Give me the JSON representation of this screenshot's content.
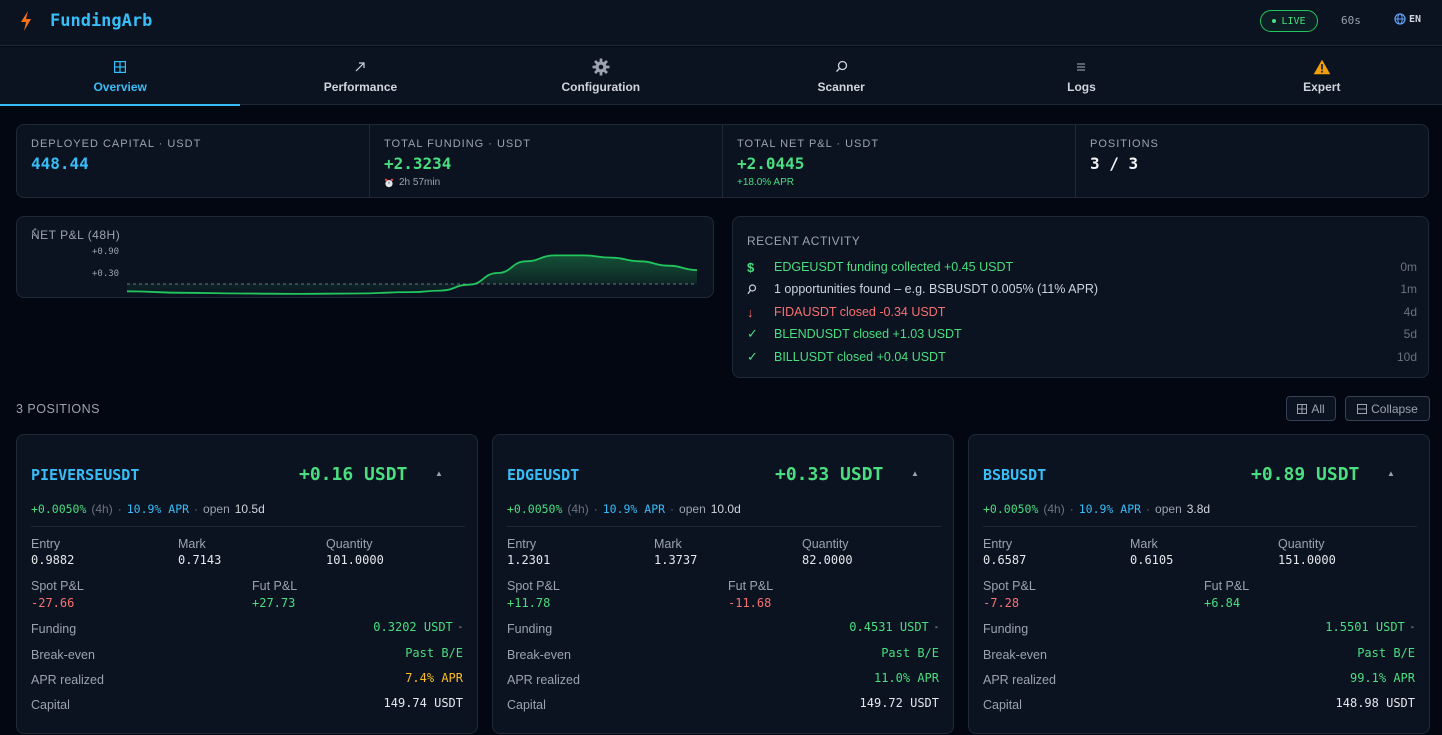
{
  "header": {
    "brand": "FundingArb",
    "live_label": "LIVE",
    "refresh_label": "60s",
    "lang_label": "EN"
  },
  "tabs": [
    {
      "label": "Overview",
      "icon": "grid-icon",
      "active": true
    },
    {
      "label": "Performance",
      "icon": "trend-arrow-icon"
    },
    {
      "label": "Configuration",
      "icon": "gear-icon"
    },
    {
      "label": "Scanner",
      "icon": "search-icon"
    },
    {
      "label": "Logs",
      "icon": "list-icon"
    },
    {
      "label": "Expert",
      "icon": "warning-icon"
    }
  ],
  "stats": {
    "deployed": {
      "label": "DEPLOYED CAPITAL · USDT",
      "value": "448.44"
    },
    "funding": {
      "label": "TOTAL FUNDING · USDT",
      "value": "+2.3234",
      "sub": "2h 57min"
    },
    "net": {
      "label": "TOTAL NET P&L · USDT",
      "value": "+2.0445",
      "sub": "+18.0% APR"
    },
    "positions": {
      "label": "POSITIONS",
      "value": "3 / 3"
    }
  },
  "net_chart": {
    "title": "NET P&L (48H)",
    "tick_high": "+0.90",
    "tick_low": "+0.30"
  },
  "chart_data": {
    "type": "area",
    "title": "NET P&L (48H)",
    "y_ticks": [
      0.9,
      0.3
    ],
    "baseline": 0.0,
    "x": [
      0,
      0.1,
      0.2,
      0.3,
      0.4,
      0.5,
      0.55,
      0.6,
      0.65,
      0.7,
      0.75,
      0.8,
      0.85,
      0.9,
      0.95,
      1.0
    ],
    "values": [
      -0.2,
      -0.24,
      -0.26,
      -0.27,
      -0.26,
      -0.22,
      -0.18,
      -0.02,
      0.3,
      0.62,
      0.78,
      0.78,
      0.72,
      0.62,
      0.5,
      0.38
    ],
    "color": "#22c55e"
  },
  "activity": {
    "title": "RECENT ACTIVITY",
    "items": [
      {
        "icon": "dollar-icon",
        "glyph": "$",
        "text": "EDGEUSDT funding collected +0.45 USDT",
        "time": "0m",
        "color": "#4ade80"
      },
      {
        "icon": "search-icon",
        "glyph": "⚲",
        "text": "1 opportunities found – e.g. BSBUSDT 0.005% (11% APR)",
        "time": "1m",
        "color": "#cbd5e1"
      },
      {
        "icon": "arrow-down-icon",
        "glyph": "↓",
        "text": "FIDAUSDT closed -0.34 USDT",
        "time": "4d",
        "color": "#f87171"
      },
      {
        "icon": "check-icon",
        "glyph": "✓",
        "text": "BLENDUSDT closed +1.03 USDT",
        "time": "5d",
        "color": "#4ade80"
      },
      {
        "icon": "check-icon",
        "glyph": "✓",
        "text": "BILLUSDT closed +0.04 USDT",
        "time": "10d",
        "color": "#4ade80"
      }
    ]
  },
  "positions_header": {
    "label": "3 POSITIONS",
    "all_label": "All",
    "collapse_label": "Collapse"
  },
  "positions": [
    {
      "symbol": "PIEVERSEUSDT",
      "pnl": "+0.16 USDT",
      "rate": "+0.0050%",
      "interval": "(4h)",
      "apr": "10.9% APR",
      "open_label": "open",
      "open_value": "10.5d",
      "entry_label": "Entry",
      "entry": "0.9882",
      "mark_label": "Mark",
      "mark": "0.7143",
      "qty_label": "Quantity",
      "qty": "101.0000",
      "spot_label": "Spot P&L",
      "spot": "-27.66",
      "spot_color": "red",
      "fut_label": "Fut P&L",
      "fut": "+27.73",
      "fut_color": "green",
      "funding_label": "Funding",
      "funding": "0.3202 USDT",
      "be_label": "Break-even",
      "be": "Past B/E",
      "apr_label": "APR realized",
      "apr_realized": "7.4% APR",
      "apr_color": "amber",
      "capital_label": "Capital",
      "capital": "149.74 USDT"
    },
    {
      "symbol": "EDGEUSDT",
      "pnl": "+0.33 USDT",
      "rate": "+0.0050%",
      "interval": "(4h)",
      "apr": "10.9% APR",
      "open_label": "open",
      "open_value": "10.0d",
      "entry_label": "Entry",
      "entry": "1.2301",
      "mark_label": "Mark",
      "mark": "1.3737",
      "qty_label": "Quantity",
      "qty": "82.0000",
      "spot_label": "Spot P&L",
      "spot": "+11.78",
      "spot_color": "green",
      "fut_label": "Fut P&L",
      "fut": "-11.68",
      "fut_color": "red",
      "funding_label": "Funding",
      "funding": "0.4531 USDT",
      "be_label": "Break-even",
      "be": "Past B/E",
      "apr_label": "APR realized",
      "apr_realized": "11.0% APR",
      "apr_color": "green",
      "capital_label": "Capital",
      "capital": "149.72 USDT"
    },
    {
      "symbol": "BSBUSDT",
      "pnl": "+0.89 USDT",
      "rate": "+0.0050%",
      "interval": "(4h)",
      "apr": "10.9% APR",
      "open_label": "open",
      "open_value": "3.8d",
      "entry_label": "Entry",
      "entry": "0.6587",
      "mark_label": "Mark",
      "mark": "0.6105",
      "qty_label": "Quantity",
      "qty": "151.0000",
      "spot_label": "Spot P&L",
      "spot": "-7.28",
      "spot_color": "red",
      "fut_label": "Fut P&L",
      "fut": "+6.84",
      "fut_color": "green",
      "funding_label": "Funding",
      "funding": "1.5501 USDT",
      "be_label": "Break-even",
      "be": "Past B/E",
      "apr_label": "APR realized",
      "apr_realized": "99.1% APR",
      "apr_color": "green",
      "capital_label": "Capital",
      "capital": "148.98 USDT"
    }
  ]
}
